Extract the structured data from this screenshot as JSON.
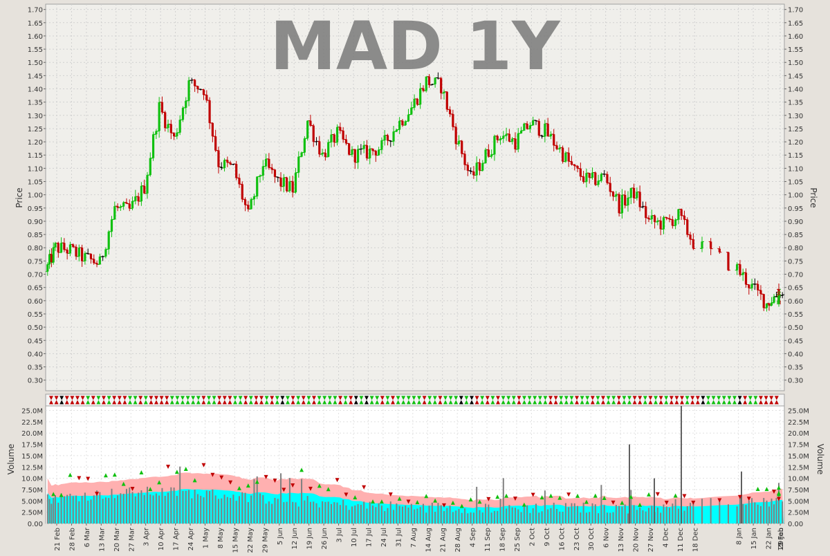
{
  "title": "MAD 1Y",
  "price_axis_label": "Price",
  "volume_axis_label": "Volume",
  "colors": {
    "up": "#10c010",
    "down": "#c00000",
    "neutral": "#000000",
    "volume_bar": "#808080",
    "volume_band_outer": "#ffb0b0",
    "volume_band_inner": "#00ffff",
    "background": "#f0efeb",
    "title": "#7a7a7a"
  },
  "chart_data": [
    {
      "type": "candlestick",
      "ylabel": "Price",
      "ylim": [
        0.26,
        1.72
      ],
      "y_ticks": [
        "0.30",
        "0.35",
        "0.40",
        "0.45",
        "0.50",
        "0.55",
        "0.60",
        "0.65",
        "0.70",
        "0.75",
        "0.80",
        "0.85",
        "0.90",
        "0.95",
        "1.00",
        "1.05",
        "1.10",
        "1.15",
        "1.20",
        "1.25",
        "1.30",
        "1.35",
        "1.40",
        "1.45",
        "1.50",
        "1.55",
        "1.60",
        "1.65",
        "1.70"
      ],
      "x_tick_labels": [
        "21 Feb",
        "28 Feb",
        "6 Mar",
        "13 Mar",
        "20 Mar",
        "27 Mar",
        "3 Apr",
        "10 Apr",
        "17 Apr",
        "24 Apr",
        "1 May",
        "8 May",
        "15 May",
        "22 May",
        "29 May",
        "5 Jun",
        "12 Jun",
        "19 Jun",
        "26 Jun",
        "3 Jul",
        "10 Jul",
        "17 Jul",
        "24 Jul",
        "31 Jul",
        "7 Aug",
        "14 Aug",
        "21 Aug",
        "28 Aug",
        "4 Sep",
        "11 Sep",
        "18 Sep",
        "25 Sep",
        "2 Oct",
        "9 Oct",
        "16 Oct",
        "23 Oct",
        "30 Oct",
        "6 Nov",
        "13 Nov",
        "20 Nov",
        "27 Nov",
        "4 Dec",
        "11 Dec",
        "18 Dec",
        "8 Jan",
        "15 Jan",
        "22 Jan",
        "29 Jan",
        "5 Feb",
        "12 Feb"
      ],
      "weekly_close": [
        0.8,
        0.79,
        0.76,
        0.74,
        0.95,
        0.94,
        1.03,
        1.33,
        1.21,
        1.42,
        1.4,
        1.12,
        1.1,
        0.92,
        1.12,
        1.05,
        1.02,
        1.28,
        1.15,
        1.23,
        1.15,
        1.16,
        1.18,
        1.26,
        1.33,
        1.43,
        1.41,
        1.22,
        1.06,
        1.15,
        1.23,
        1.2,
        1.27,
        1.24,
        1.17,
        1.09,
        1.05,
        1.07,
        0.96,
        1.01,
        0.9,
        0.89,
        0.92,
        0.82,
        0.72,
        0.65,
        0.59,
        0.63,
        0.6,
        0.63
      ]
    },
    {
      "type": "bar",
      "ylabel": "Volume",
      "ylim": [
        0,
        26000000
      ],
      "y_ticks": [
        "0.00",
        "2.50M",
        "5.00M",
        "7.50M",
        "10.0M",
        "12.5M",
        "15.0M",
        "17.5M",
        "20.0M",
        "22.5M",
        "25.0M"
      ]
    }
  ]
}
